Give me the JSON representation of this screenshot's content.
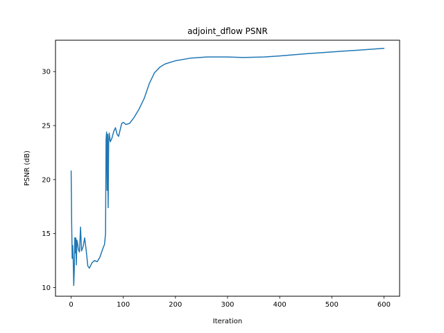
{
  "chart_data": {
    "type": "line",
    "title": "adjoint_dflow PSNR",
    "xlabel": "Iteration",
    "ylabel": "PSNR (dB)",
    "xlim": [
      -30,
      630
    ],
    "ylim": [
      9.2,
      32.9
    ],
    "xticks": [
      0,
      100,
      200,
      300,
      400,
      500,
      600
    ],
    "yticks": [
      10,
      15,
      20,
      25,
      30
    ],
    "grid": false,
    "legend": "none",
    "series": [
      {
        "color": "#1f77b4",
        "points": [
          [
            0,
            20.8
          ],
          [
            1,
            16.0
          ],
          [
            2,
            12.7
          ],
          [
            3,
            13.9
          ],
          [
            4,
            12.5
          ],
          [
            5,
            10.2
          ],
          [
            6,
            11.5
          ],
          [
            7,
            14.6
          ],
          [
            8,
            13.2
          ],
          [
            9,
            14.6
          ],
          [
            10,
            12.1
          ],
          [
            11,
            14.4
          ],
          [
            12,
            14.2
          ],
          [
            14,
            13.5
          ],
          [
            16,
            13.3
          ],
          [
            18,
            15.6
          ],
          [
            20,
            13.4
          ],
          [
            23,
            13.8
          ],
          [
            26,
            14.6
          ],
          [
            29,
            13.4
          ],
          [
            32,
            12.0
          ],
          [
            35,
            11.8
          ],
          [
            40,
            12.3
          ],
          [
            45,
            12.5
          ],
          [
            50,
            12.4
          ],
          [
            55,
            12.8
          ],
          [
            60,
            13.5
          ],
          [
            64,
            14.0
          ],
          [
            66,
            15.0
          ],
          [
            67,
            23.7
          ],
          [
            68,
            24.4
          ],
          [
            69,
            19.0
          ],
          [
            70,
            24.2
          ],
          [
            71,
            17.4
          ],
          [
            72,
            23.5
          ],
          [
            73,
            24.3
          ],
          [
            75,
            23.5
          ],
          [
            78,
            23.8
          ],
          [
            82,
            24.5
          ],
          [
            85,
            24.8
          ],
          [
            88,
            24.2
          ],
          [
            91,
            24.0
          ],
          [
            94,
            24.6
          ],
          [
            97,
            25.2
          ],
          [
            100,
            25.3
          ],
          [
            105,
            25.1
          ],
          [
            112,
            25.2
          ],
          [
            120,
            25.7
          ],
          [
            130,
            26.5
          ],
          [
            140,
            27.5
          ],
          [
            150,
            28.9
          ],
          [
            160,
            29.9
          ],
          [
            170,
            30.4
          ],
          [
            180,
            30.7
          ],
          [
            200,
            31.0
          ],
          [
            230,
            31.25
          ],
          [
            260,
            31.35
          ],
          [
            300,
            31.35
          ],
          [
            330,
            31.3
          ],
          [
            370,
            31.35
          ],
          [
            400,
            31.45
          ],
          [
            450,
            31.65
          ],
          [
            500,
            31.82
          ],
          [
            550,
            31.98
          ],
          [
            600,
            32.15
          ]
        ]
      }
    ]
  }
}
